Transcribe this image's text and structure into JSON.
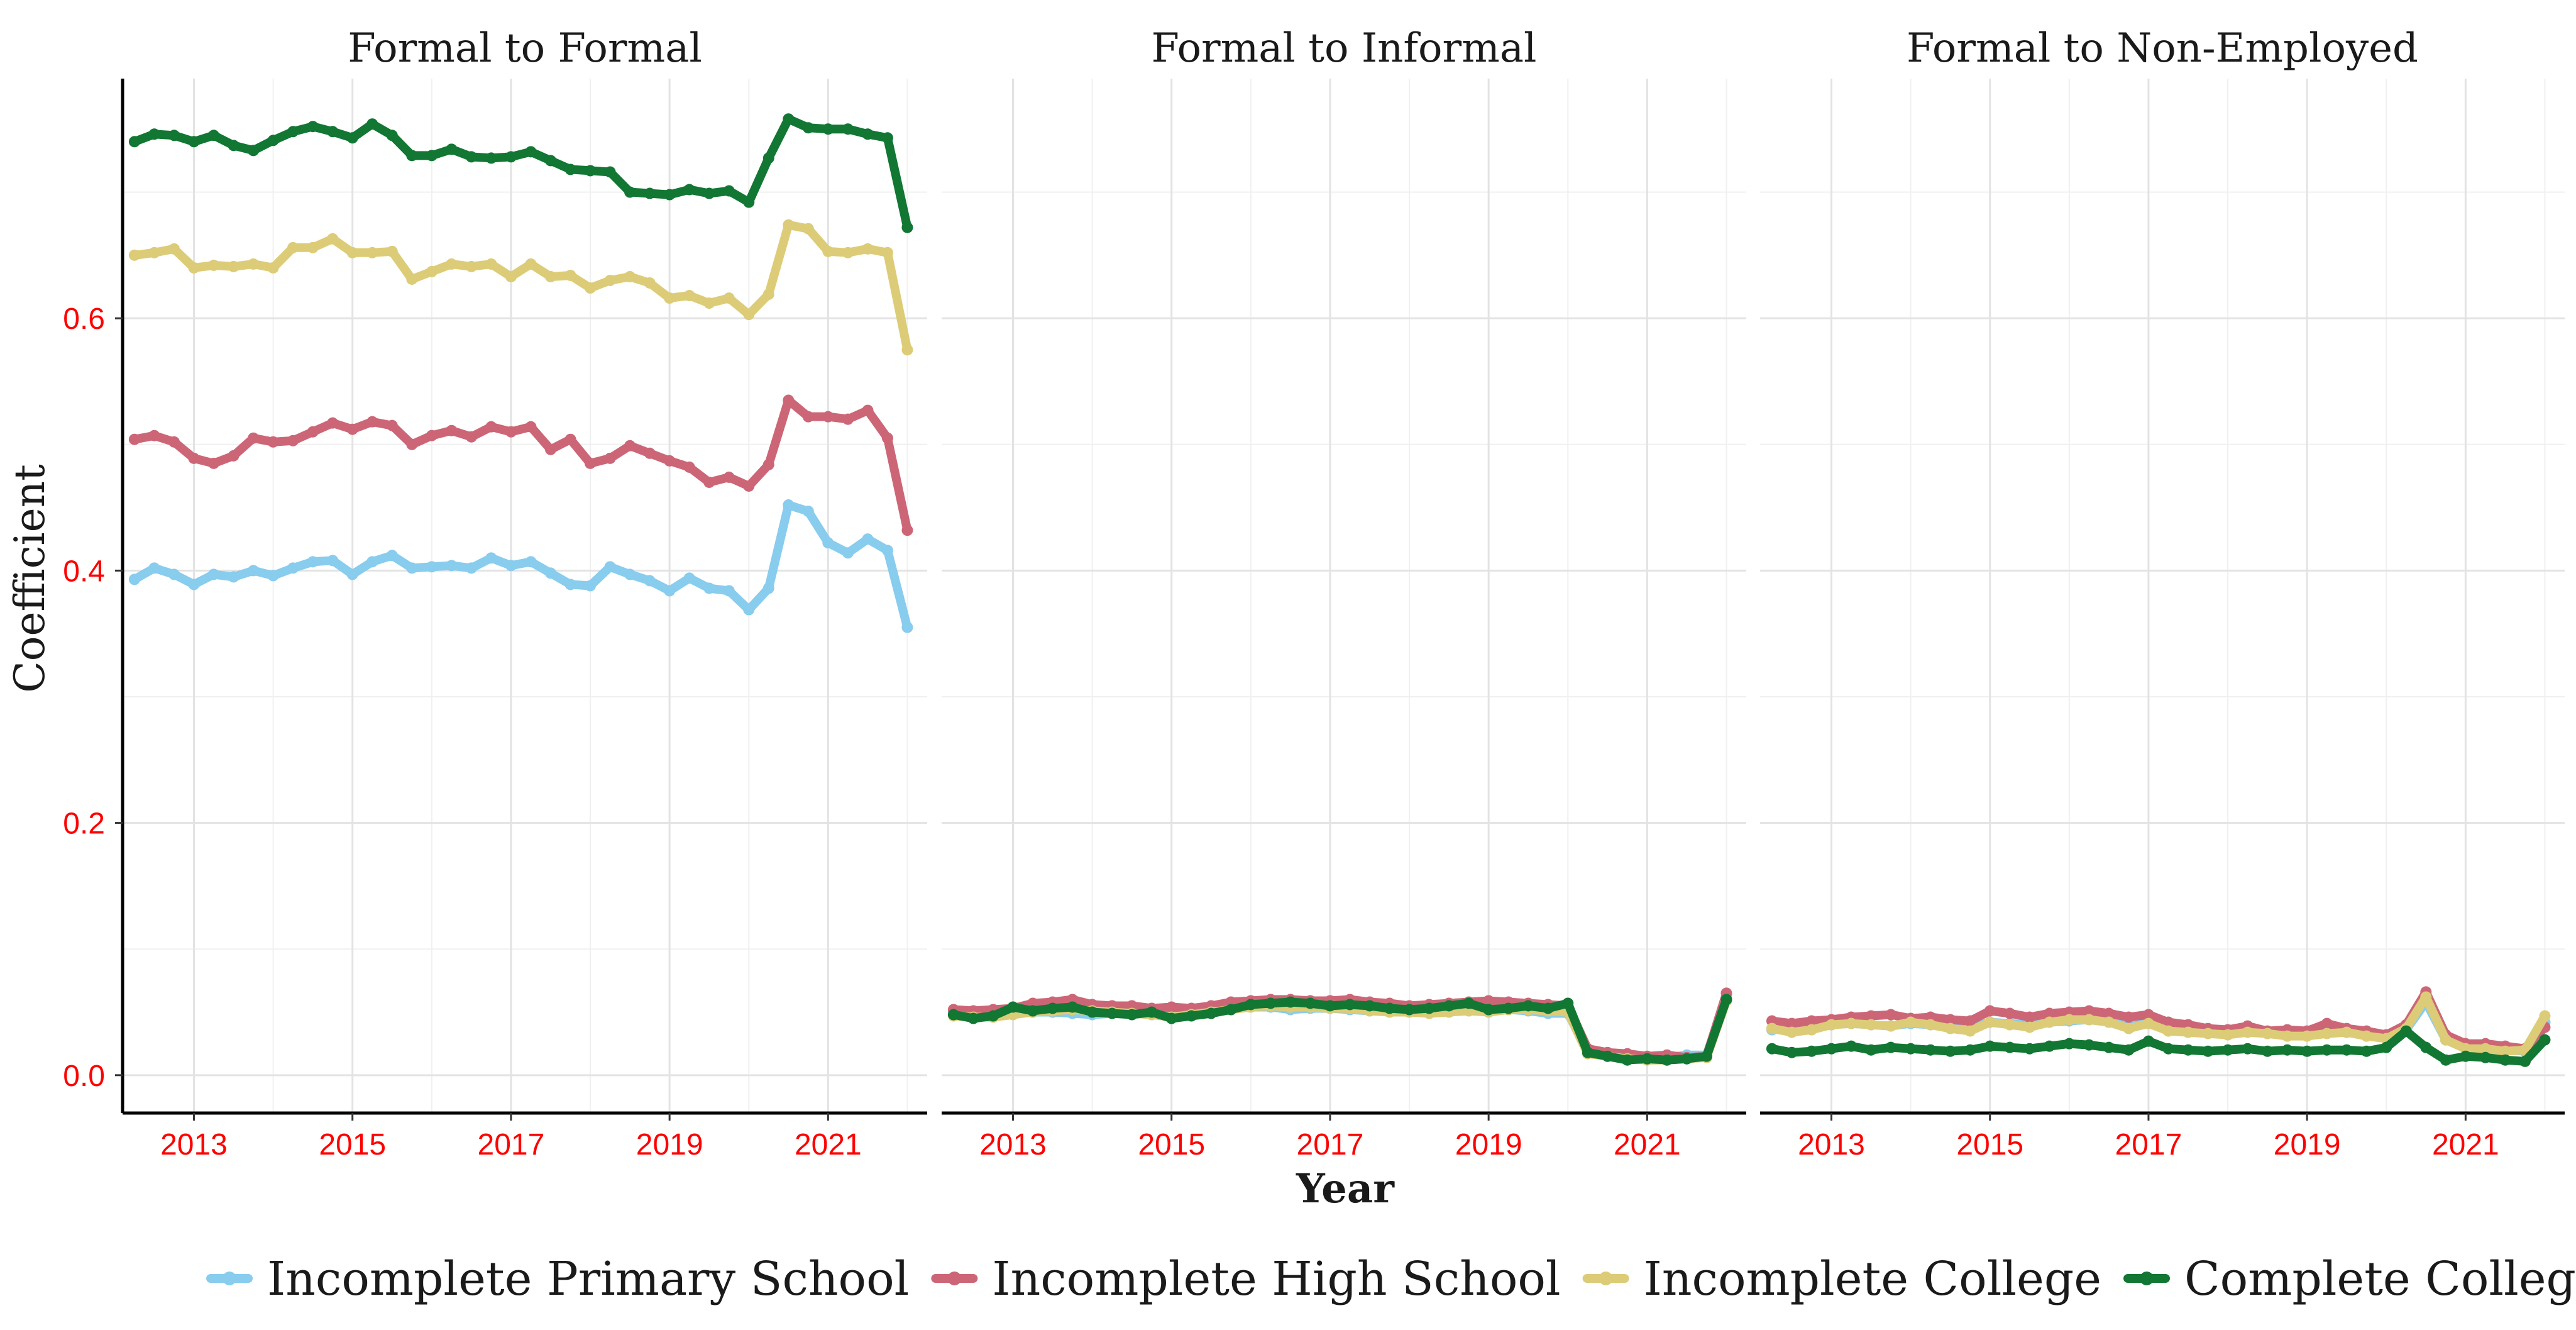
{
  "chart_data": {
    "type": "line",
    "ylabel": "Coefficient",
    "xlabel": "Year",
    "ylim": [
      -0.03,
      0.79
    ],
    "xlim": [
      2012.1,
      2022.25
    ],
    "y_ticks": [
      "0.0",
      "0.2",
      "0.4",
      "0.6"
    ],
    "x_ticks": [
      "2013",
      "2015",
      "2017",
      "2019",
      "2021"
    ],
    "legend_position": "bottom",
    "grid": true,
    "x": [
      2012.25,
      2012.5,
      2012.75,
      2013.0,
      2013.25,
      2013.5,
      2013.75,
      2014.0,
      2014.25,
      2014.5,
      2014.75,
      2015.0,
      2015.25,
      2015.5,
      2015.75,
      2016.0,
      2016.25,
      2016.5,
      2016.75,
      2017.0,
      2017.25,
      2017.5,
      2017.75,
      2018.0,
      2018.25,
      2018.5,
      2018.75,
      2019.0,
      2019.25,
      2019.5,
      2019.75,
      2020.0,
      2020.25,
      2020.5,
      2020.75,
      2021.0,
      2021.25,
      2021.5,
      2021.75,
      2022.0
    ],
    "series_styles": [
      {
        "name": "Incomplete Primary School",
        "color": "#88CCEE"
      },
      {
        "name": "Incomplete High School",
        "color": "#CC6677"
      },
      {
        "name": "Incomplete College",
        "color": "#DDCC77"
      },
      {
        "name": "Complete College",
        "color": "#117733"
      }
    ],
    "panels": [
      {
        "title": "Formal to Formal",
        "series": [
          {
            "name": "Incomplete Primary School",
            "values": [
              0.393,
              0.402,
              0.397,
              0.389,
              0.397,
              0.395,
              0.4,
              0.396,
              0.402,
              0.407,
              0.408,
              0.397,
              0.407,
              0.412,
              0.402,
              0.403,
              0.404,
              0.402,
              0.41,
              0.404,
              0.407,
              0.398,
              0.389,
              0.388,
              0.403,
              0.397,
              0.392,
              0.384,
              0.394,
              0.386,
              0.384,
              0.369,
              0.386,
              0.452,
              0.447,
              0.422,
              0.414,
              0.425,
              0.416,
              0.355
            ]
          },
          {
            "name": "Incomplete High School",
            "values": [
              0.504,
              0.507,
              0.502,
              0.489,
              0.485,
              0.491,
              0.505,
              0.502,
              0.503,
              0.51,
              0.517,
              0.512,
              0.518,
              0.515,
              0.5,
              0.507,
              0.511,
              0.506,
              0.514,
              0.51,
              0.514,
              0.496,
              0.504,
              0.485,
              0.489,
              0.499,
              0.493,
              0.487,
              0.482,
              0.47,
              0.474,
              0.467,
              0.484,
              0.535,
              0.522,
              0.522,
              0.52,
              0.527,
              0.505,
              0.432
            ]
          },
          {
            "name": "Incomplete College",
            "values": [
              0.65,
              0.652,
              0.655,
              0.64,
              0.642,
              0.641,
              0.643,
              0.64,
              0.656,
              0.656,
              0.663,
              0.652,
              0.652,
              0.653,
              0.631,
              0.637,
              0.643,
              0.641,
              0.643,
              0.633,
              0.643,
              0.633,
              0.634,
              0.624,
              0.63,
              0.633,
              0.628,
              0.616,
              0.618,
              0.612,
              0.616,
              0.603,
              0.619,
              0.674,
              0.671,
              0.653,
              0.652,
              0.655,
              0.652,
              0.575
            ]
          },
          {
            "name": "Complete College",
            "values": [
              0.74,
              0.746,
              0.745,
              0.74,
              0.745,
              0.737,
              0.733,
              0.741,
              0.748,
              0.752,
              0.748,
              0.743,
              0.754,
              0.745,
              0.729,
              0.729,
              0.734,
              0.728,
              0.727,
              0.728,
              0.732,
              0.725,
              0.718,
              0.717,
              0.716,
              0.7,
              0.699,
              0.698,
              0.702,
              0.699,
              0.701,
              0.692,
              0.727,
              0.758,
              0.751,
              0.75,
              0.75,
              0.746,
              0.743,
              0.672
            ]
          }
        ]
      },
      {
        "title": "Formal to Informal",
        "series": [
          {
            "name": "Incomplete Primary School",
            "values": [
              0.05,
              0.048,
              0.047,
              0.049,
              0.05,
              0.05,
              0.049,
              0.048,
              0.049,
              0.049,
              0.048,
              0.047,
              0.049,
              0.051,
              0.053,
              0.054,
              0.054,
              0.052,
              0.053,
              0.053,
              0.052,
              0.051,
              0.051,
              0.051,
              0.05,
              0.051,
              0.052,
              0.051,
              0.052,
              0.051,
              0.049,
              0.049,
              0.019,
              0.017,
              0.015,
              0.013,
              0.014,
              0.016,
              0.016,
              0.062
            ]
          },
          {
            "name": "Incomplete High School",
            "values": [
              0.052,
              0.051,
              0.052,
              0.053,
              0.057,
              0.058,
              0.06,
              0.056,
              0.055,
              0.055,
              0.053,
              0.054,
              0.053,
              0.055,
              0.058,
              0.059,
              0.06,
              0.06,
              0.059,
              0.059,
              0.06,
              0.058,
              0.057,
              0.055,
              0.056,
              0.057,
              0.058,
              0.059,
              0.058,
              0.057,
              0.056,
              0.055,
              0.021,
              0.018,
              0.017,
              0.015,
              0.016,
              0.014,
              0.015,
              0.065
            ]
          },
          {
            "name": "Incomplete College",
            "values": [
              0.047,
              0.046,
              0.046,
              0.048,
              0.05,
              0.051,
              0.052,
              0.051,
              0.05,
              0.049,
              0.048,
              0.046,
              0.048,
              0.05,
              0.052,
              0.054,
              0.055,
              0.054,
              0.054,
              0.053,
              0.053,
              0.051,
              0.05,
              0.05,
              0.049,
              0.05,
              0.051,
              0.05,
              0.052,
              0.052,
              0.051,
              0.05,
              0.017,
              0.015,
              0.013,
              0.012,
              0.012,
              0.013,
              0.014,
              0.059
            ]
          },
          {
            "name": "Complete College",
            "values": [
              0.048,
              0.045,
              0.047,
              0.054,
              0.051,
              0.053,
              0.054,
              0.05,
              0.049,
              0.048,
              0.05,
              0.045,
              0.047,
              0.049,
              0.052,
              0.056,
              0.057,
              0.058,
              0.057,
              0.055,
              0.056,
              0.055,
              0.053,
              0.052,
              0.053,
              0.055,
              0.057,
              0.052,
              0.053,
              0.055,
              0.053,
              0.057,
              0.018,
              0.015,
              0.012,
              0.013,
              0.012,
              0.013,
              0.015,
              0.06
            ]
          }
        ]
      },
      {
        "title": "Formal to Non-Employed",
        "series": [
          {
            "name": "Incomplete Primary School",
            "values": [
              0.036,
              0.038,
              0.038,
              0.04,
              0.041,
              0.04,
              0.039,
              0.041,
              0.04,
              0.039,
              0.038,
              0.042,
              0.041,
              0.04,
              0.042,
              0.043,
              0.044,
              0.042,
              0.04,
              0.041,
              0.038,
              0.036,
              0.035,
              0.034,
              0.036,
              0.034,
              0.033,
              0.033,
              0.035,
              0.034,
              0.032,
              0.03,
              0.036,
              0.058,
              0.028,
              0.022,
              0.021,
              0.02,
              0.019,
              0.042
            ]
          },
          {
            "name": "Incomplete High School",
            "values": [
              0.043,
              0.041,
              0.043,
              0.044,
              0.046,
              0.047,
              0.048,
              0.045,
              0.046,
              0.044,
              0.043,
              0.051,
              0.049,
              0.046,
              0.049,
              0.05,
              0.051,
              0.049,
              0.046,
              0.048,
              0.042,
              0.04,
              0.037,
              0.036,
              0.039,
              0.035,
              0.036,
              0.035,
              0.041,
              0.037,
              0.035,
              0.032,
              0.04,
              0.066,
              0.032,
              0.025,
              0.025,
              0.023,
              0.021,
              0.038
            ]
          },
          {
            "name": "Incomplete College",
            "values": [
              0.037,
              0.034,
              0.036,
              0.04,
              0.041,
              0.04,
              0.039,
              0.042,
              0.04,
              0.037,
              0.035,
              0.042,
              0.04,
              0.038,
              0.042,
              0.044,
              0.044,
              0.042,
              0.037,
              0.041,
              0.035,
              0.034,
              0.033,
              0.032,
              0.034,
              0.033,
              0.031,
              0.031,
              0.033,
              0.034,
              0.031,
              0.029,
              0.037,
              0.062,
              0.028,
              0.021,
              0.021,
              0.019,
              0.02,
              0.047
            ]
          },
          {
            "name": "Complete College",
            "values": [
              0.021,
              0.018,
              0.019,
              0.021,
              0.023,
              0.02,
              0.022,
              0.021,
              0.02,
              0.019,
              0.02,
              0.023,
              0.022,
              0.021,
              0.023,
              0.025,
              0.024,
              0.022,
              0.02,
              0.027,
              0.021,
              0.02,
              0.019,
              0.02,
              0.021,
              0.019,
              0.02,
              0.019,
              0.02,
              0.02,
              0.019,
              0.022,
              0.035,
              0.022,
              0.012,
              0.015,
              0.014,
              0.012,
              0.011,
              0.028
            ]
          }
        ]
      }
    ]
  }
}
